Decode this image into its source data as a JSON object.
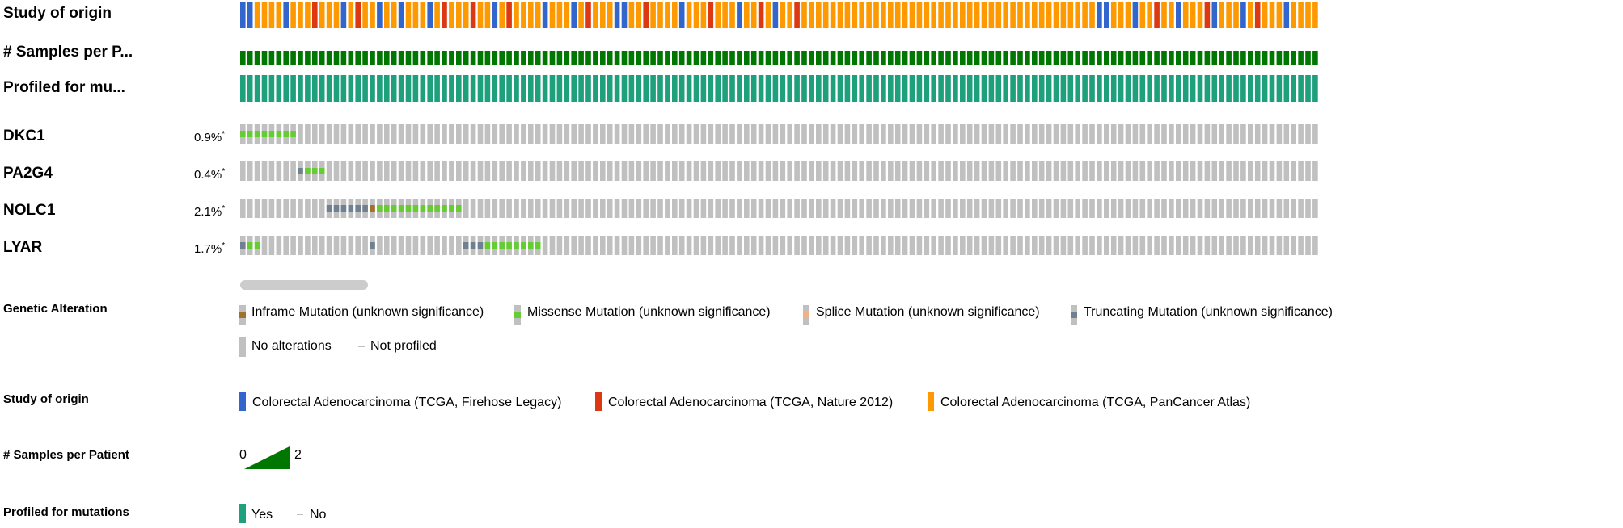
{
  "tracks": {
    "study_label": "Study of origin",
    "samples_label": "# Samples per P...",
    "profiled_label": "Profiled for mu..."
  },
  "genes": [
    {
      "name": "DKC1",
      "pct": "0.9%",
      "asterisk": "*"
    },
    {
      "name": "PA2G4",
      "pct": "0.4%",
      "asterisk": "*"
    },
    {
      "name": "NOLC1",
      "pct": "2.1%",
      "asterisk": "*"
    },
    {
      "name": "LYAR",
      "pct": "1.7%",
      "asterisk": "*"
    }
  ],
  "legend": {
    "genetic_alteration": {
      "title": "Genetic Alteration",
      "items": [
        "Inframe Mutation (unknown significance)",
        "Missense Mutation (unknown significance)",
        "Splice Mutation (unknown significance)",
        "Truncating Mutation (unknown significance)",
        "No alterations",
        "Not profiled"
      ]
    },
    "study_of_origin": {
      "title": "Study of origin",
      "items": [
        "Colorectal Adenocarcinoma (TCGA, Firehose Legacy)",
        "Colorectal Adenocarcinoma (TCGA, Nature 2012)",
        "Colorectal Adenocarcinoma (TCGA, PanCancer Atlas)"
      ]
    },
    "samples_per_patient": {
      "title": "# Samples per Patient",
      "min": "0",
      "max": "2"
    },
    "profiled_for_mutations": {
      "title": "Profiled for mutations",
      "yes": "Yes",
      "no": "No"
    }
  },
  "colors": {
    "study_firehose": "#3366cc",
    "study_nature": "#dc3912",
    "study_pancancer": "#ff9900",
    "samples": "#007700",
    "profiled": "#1fa07c",
    "no_alteration": "#c0c0c0",
    "missense": "#66cc33",
    "truncating": "#708090",
    "inframe": "#a0722d",
    "splice": "#f5b07f"
  },
  "chart_data": {
    "type": "oncoprint",
    "num_samples": 150,
    "study_of_origin": "BBPPPPBPPPRPPPBPRPPBPPBPPPBPRPPPRPPBPRPPPPBPPPBPRPPPBBPPRPPPPBPPPRPPPBPPRPBPPRPPPPPPPPPPPPPPPPPPPPPPPPPPPPPPPPPPPPPPPPPBBPPPBPPRPPBPPPRBPPPBPRPPPBPPP",
    "study_codes": {
      "B": "Colorectal Adenocarcinoma (TCGA, Firehose Legacy)",
      "R": "Colorectal Adenocarcinoma (TCGA, Nature 2012)",
      "P": "Colorectal Adenocarcinoma (TCGA, PanCancer Atlas)"
    },
    "samples_per_patient_range": [
      0,
      2
    ],
    "samples_per_patient_value": 1,
    "profiled_for_mutations": "Yes",
    "alterations": {
      "DKC1": {
        "missense": [
          0,
          1,
          2,
          3,
          4,
          5,
          6,
          7
        ]
      },
      "PA2G4": {
        "truncating": [
          8
        ],
        "missense": [
          9,
          10,
          11
        ]
      },
      "NOLC1": {
        "truncating": [
          12,
          13,
          14,
          15,
          16,
          17
        ],
        "inframe": [
          18
        ],
        "missense": [
          19,
          20,
          21,
          22,
          23,
          24,
          25,
          26,
          27,
          28,
          29,
          30
        ]
      },
      "LYAR": {
        "truncating": [
          0,
          18,
          31,
          32,
          33
        ],
        "missense": [
          1,
          2,
          34,
          35,
          36,
          37,
          38,
          39,
          40,
          41
        ]
      }
    }
  }
}
